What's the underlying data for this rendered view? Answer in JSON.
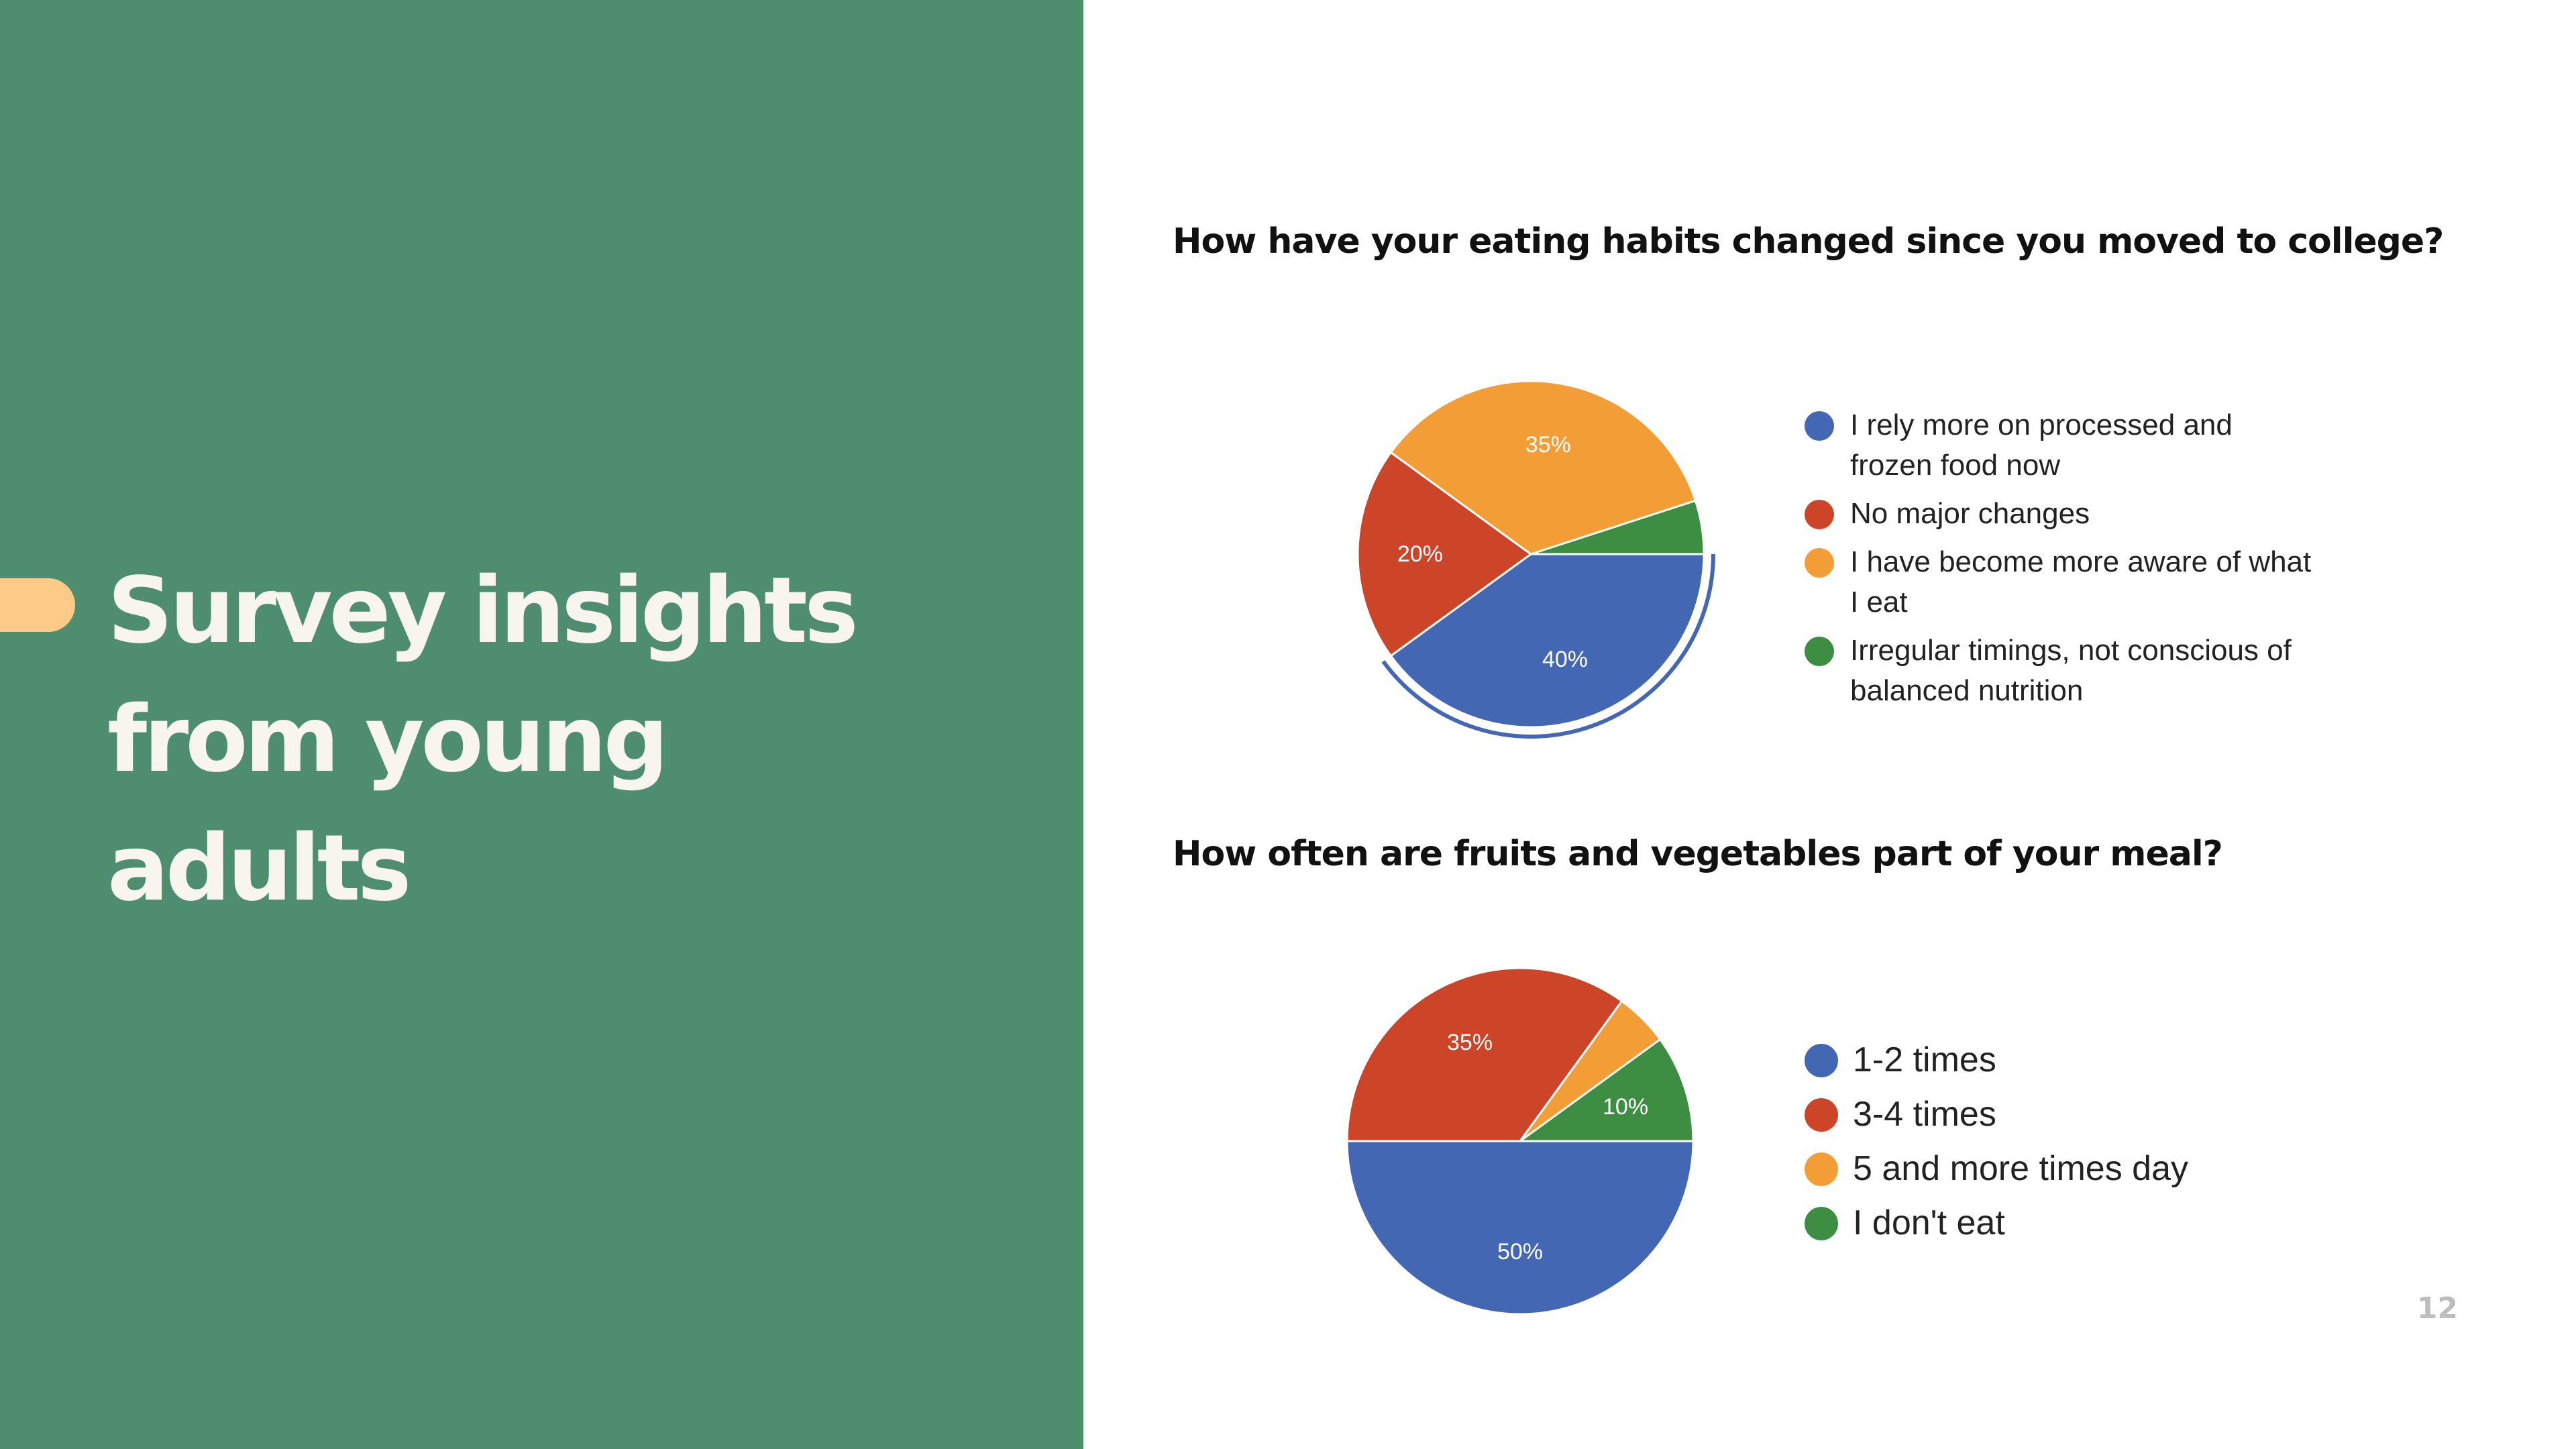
{
  "slide": {
    "title": "Survey insights from young adults",
    "page_number": "12",
    "panel_color": "#4e8e6f",
    "accent_color": "#fdca87"
  },
  "chart_data": [
    {
      "type": "pie",
      "title": "How have your eating habits changed since you moved to college?",
      "categories": [
        "I rely more on processed and frozen food now",
        "No major changes",
        "I have become more aware of what I eat",
        "Irregular timings, not conscious of balanced nutrition"
      ],
      "values": [
        40,
        20,
        35,
        5
      ],
      "labels": [
        "40%",
        "20%",
        "35%",
        ""
      ],
      "colors": [
        "#4467b3",
        "#cc4529",
        "#f39d37",
        "#3d8d43"
      ],
      "start_angle_deg": 90,
      "direction": "clockwise",
      "highlighted_index": 0,
      "legend": "right"
    },
    {
      "type": "pie",
      "title": "How often are fruits and vegetables part of your meal?",
      "categories": [
        "1-2 times",
        "3-4 times",
        "5 and more times day",
        "I don't eat"
      ],
      "values": [
        50,
        35,
        5,
        10
      ],
      "labels": [
        "50%",
        "35%",
        "",
        "10%"
      ],
      "colors": [
        "#4467b3",
        "#cc4529",
        "#f39d37",
        "#3d8d43"
      ],
      "start_angle_deg": 90,
      "direction": "clockwise",
      "legend": "right"
    }
  ]
}
